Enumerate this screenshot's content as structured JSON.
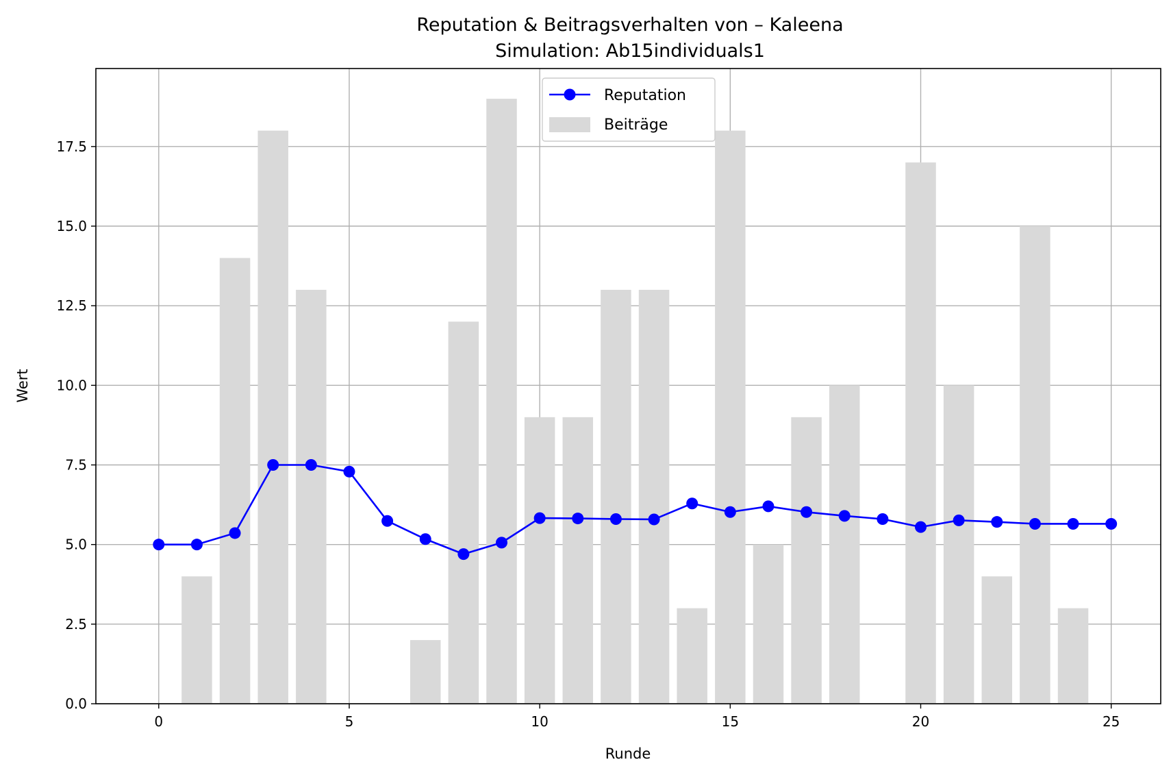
{
  "chart_data": {
    "type": "bar+line",
    "title": "Reputation & Beitragsverhalten von – Kaleena",
    "subtitle": "Simulation: Ab15individuals1",
    "xlabel": "Runde",
    "ylabel": "Wert",
    "xlim": [
      -1.65,
      26.3
    ],
    "ylim": [
      0,
      19.95
    ],
    "x_ticks": [
      0,
      5,
      10,
      15,
      20,
      25
    ],
    "x_tick_labels": [
      "0",
      "5",
      "10",
      "15",
      "20",
      "25"
    ],
    "y_ticks": [
      0,
      2.5,
      5,
      7.5,
      10,
      12.5,
      15,
      17.5
    ],
    "y_tick_labels": [
      "0.0",
      "2.5",
      "5.0",
      "7.5",
      "10.0",
      "12.5",
      "15.0",
      "17.5"
    ],
    "grid": true,
    "legend_position": "top-center",
    "legend": [
      {
        "name": "Reputation",
        "kind": "line-marker",
        "color": "#0000ff"
      },
      {
        "name": "Beiträge",
        "kind": "bar",
        "color": "#d9d9d9"
      }
    ],
    "series": [
      {
        "name": "Beiträge",
        "type": "bar",
        "color": "#d9d9d9",
        "x": [
          1,
          2,
          3,
          4,
          5,
          6,
          7,
          8,
          9,
          10,
          11,
          12,
          13,
          14,
          15,
          16,
          17,
          18,
          19,
          20,
          21,
          22,
          23,
          24,
          25
        ],
        "values": [
          4,
          14,
          18,
          13,
          0,
          0,
          2,
          12,
          19,
          9,
          9,
          13,
          13,
          3,
          18,
          5,
          9,
          10,
          0,
          17,
          10,
          4,
          15,
          3,
          0
        ]
      },
      {
        "name": "Reputation",
        "type": "line",
        "color": "#0000ff",
        "x": [
          0,
          1,
          2,
          3,
          4,
          5,
          6,
          7,
          8,
          9,
          10,
          11,
          12,
          13,
          14,
          15,
          16,
          17,
          18,
          19,
          20,
          21,
          22,
          23,
          24,
          25
        ],
        "values": [
          5.0,
          5.0,
          5.36,
          7.5,
          7.5,
          7.29,
          5.74,
          5.17,
          4.7,
          5.06,
          5.83,
          5.82,
          5.8,
          5.79,
          6.29,
          6.02,
          6.2,
          6.02,
          5.9,
          5.8,
          5.55,
          5.76,
          5.71,
          5.65,
          5.65,
          5.65
        ]
      }
    ]
  }
}
